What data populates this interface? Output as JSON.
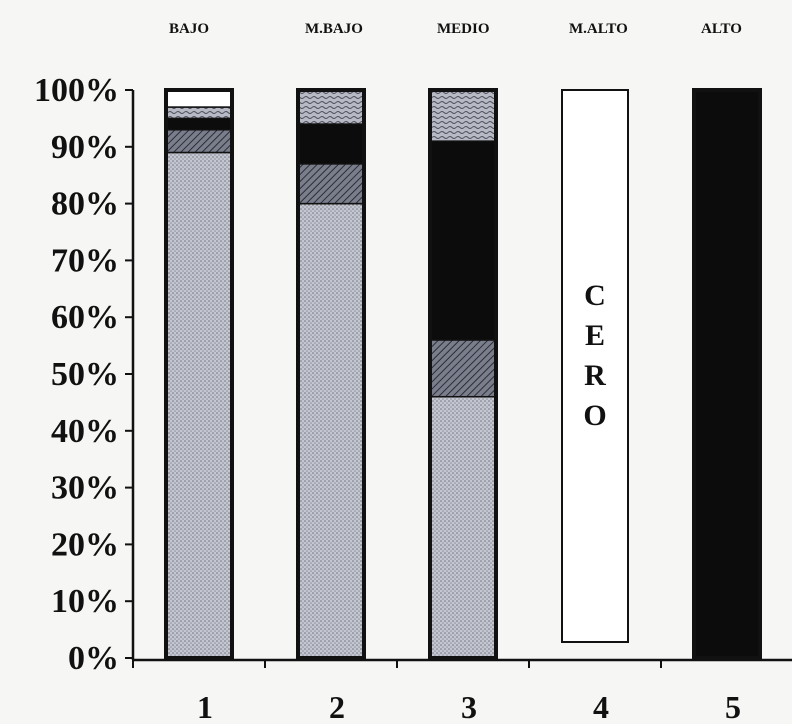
{
  "chart_data": {
    "type": "bar",
    "stacked": true,
    "percent": true,
    "title": "",
    "xlabel": "",
    "ylabel": "",
    "ylim": [
      0,
      100
    ],
    "yticks": [
      "0%",
      "10%",
      "20%",
      "30%",
      "40%",
      "50%",
      "60%",
      "70%",
      "80%",
      "90%",
      "100%"
    ],
    "categories": [
      "1",
      "2",
      "3",
      "4",
      "5"
    ],
    "category_titles": [
      "BAJO",
      "M.BAJO",
      "MEDIO",
      "M.ALTO",
      "ALTO"
    ],
    "series": [
      {
        "values": [
          89,
          80,
          46,
          0,
          0
        ],
        "color": "#b9bcc6",
        "pattern": "dots"
      },
      {
        "values": [
          4,
          7,
          10,
          0,
          0
        ],
        "color": "#5e6270",
        "pattern": "hatch"
      },
      {
        "values": [
          2,
          7,
          35,
          0,
          100
        ],
        "color": "#0c0c0c",
        "pattern": "solid"
      },
      {
        "values": [
          2,
          6,
          9,
          0,
          0
        ],
        "color": "#a8abb6",
        "pattern": "wavy"
      },
      {
        "values": [
          3,
          0,
          0,
          0,
          0
        ],
        "color": "#ffffff",
        "pattern": "none"
      }
    ],
    "annotation": {
      "category": "4",
      "text": "CERO"
    },
    "grid": false,
    "legend": "none"
  }
}
